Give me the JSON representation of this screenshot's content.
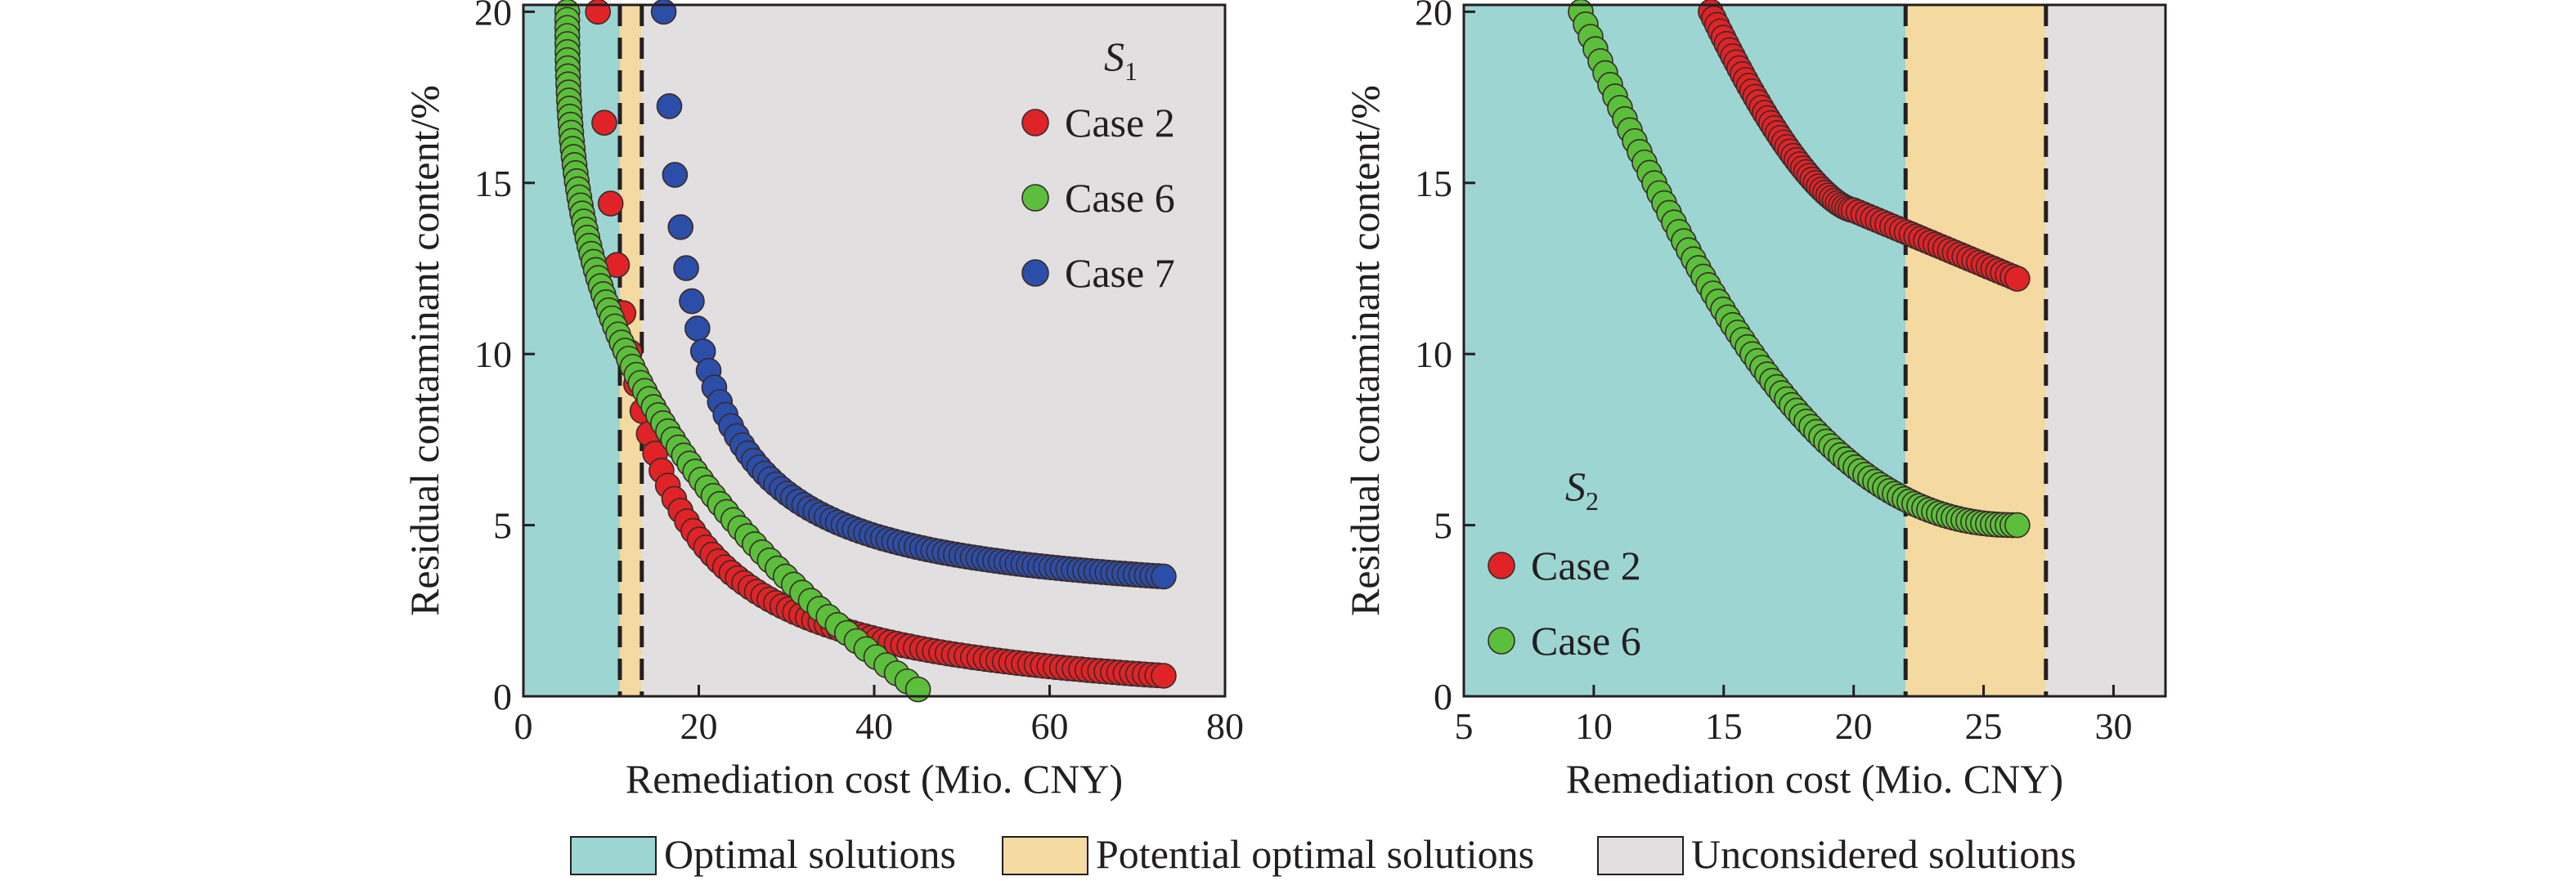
{
  "colors": {
    "optimal": "#9dd5d2",
    "potential": "#f4d9a0",
    "unconsidered": "#e1dfdf",
    "case2": "#e02327",
    "case6": "#5bbf3b",
    "case7": "#2b4ea9",
    "axis": "#231f20"
  },
  "legend": {
    "optimal": "Optimal solutions",
    "potential": "Potential optimal solutions",
    "unconsidered": "Unconsidered solutions"
  },
  "chart_data": [
    {
      "type": "scatter",
      "panel_label": "S",
      "panel_subscript": "1",
      "xlabel": "Remediation cost (Mio. CNY)",
      "ylabel": "Residual contaminant content/%",
      "xlim": [
        0,
        80
      ],
      "ylim": [
        0,
        20.2
      ],
      "xticks": [
        "0",
        "20",
        "40",
        "60",
        "80"
      ],
      "yticks": [
        "0",
        "5",
        "10",
        "15",
        "20"
      ],
      "regions": [
        {
          "kind": "optimal",
          "x": [
            0,
            11
          ]
        },
        {
          "kind": "potential",
          "x": [
            11,
            13.5
          ]
        },
        {
          "kind": "unconsidered",
          "x": [
            13.5,
            80
          ]
        }
      ],
      "dashed_lines_x": [
        11,
        13.5
      ],
      "legend_position": "top-right",
      "series": [
        {
          "name": "Case 2",
          "color_key": "case2",
          "x_range": [
            8.5,
            73
          ],
          "y_range": [
            0.6,
            20
          ],
          "shape": "hyperbolic"
        },
        {
          "name": "Case 6",
          "color_key": "case6",
          "x_range": [
            5,
            45
          ],
          "y_range": [
            0.2,
            20
          ],
          "shape": "hyperbolic-steep"
        },
        {
          "name": "Case 7",
          "color_key": "case7",
          "x_range": [
            16,
            73
          ],
          "y_range": [
            3.5,
            20
          ],
          "shape": "hyperbolic"
        }
      ]
    },
    {
      "type": "scatter",
      "panel_label": "S",
      "panel_subscript": "2",
      "xlabel": "Remediation cost (Mio. CNY)",
      "ylabel": "Residual contaminant content/%",
      "xlim": [
        5,
        32
      ],
      "ylim": [
        0,
        20.2
      ],
      "xticks": [
        "5",
        "10",
        "15",
        "20",
        "25",
        "30"
      ],
      "yticks": [
        "0",
        "5",
        "10",
        "15",
        "20"
      ],
      "regions": [
        {
          "kind": "optimal",
          "x": [
            5,
            22
          ]
        },
        {
          "kind": "potential",
          "x": [
            22,
            27.4
          ]
        },
        {
          "kind": "unconsidered",
          "x": [
            27.4,
            32
          ]
        }
      ],
      "dashed_lines_x": [
        22,
        27.4
      ],
      "legend_position": "bottom-left",
      "series": [
        {
          "name": "Case 2",
          "color_key": "case2",
          "x_range": [
            14.5,
            26.3
          ],
          "y_range": [
            12.2,
            20
          ],
          "shape": "kinked"
        },
        {
          "name": "Case 6",
          "color_key": "case6",
          "x_range": [
            9.5,
            26.3
          ],
          "y_range": [
            5,
            20
          ],
          "shape": "convex"
        }
      ]
    }
  ]
}
